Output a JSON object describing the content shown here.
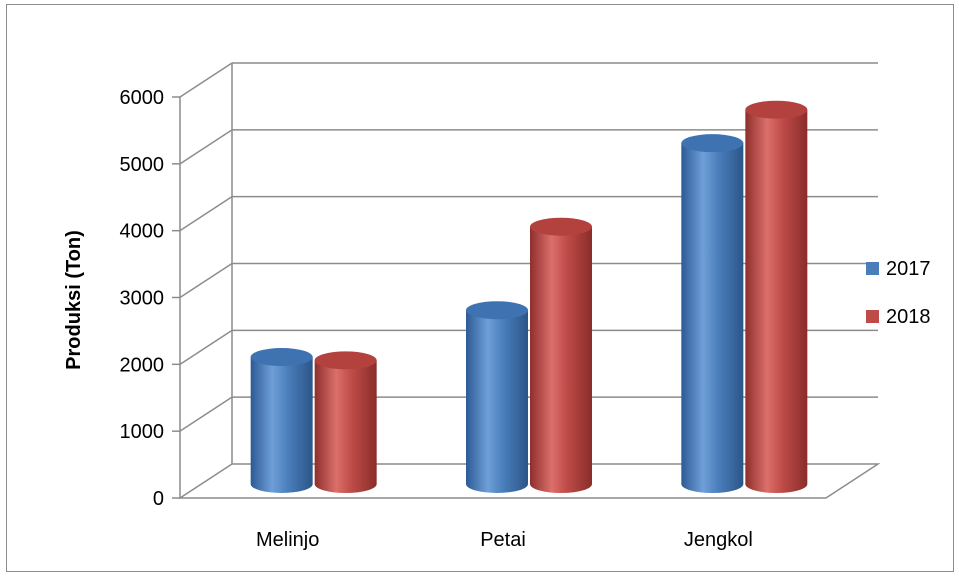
{
  "chart_data": {
    "type": "bar",
    "title": "",
    "xlabel": "",
    "ylabel": "Produksi (Ton)",
    "categories": [
      "Melinjo",
      "Petai",
      "Jengkol"
    ],
    "series": [
      {
        "name": "2017",
        "values": [
          1900,
          2600,
          5100
        ],
        "color": "#4a7ebb"
      },
      {
        "name": "2018",
        "values": [
          1850,
          3850,
          5600
        ],
        "color": "#be4b48"
      }
    ],
    "ylim": [
      0,
      6000
    ],
    "yticks": [
      "0",
      "1000",
      "2000",
      "3000",
      "4000",
      "5000",
      "6000"
    ],
    "grid": true,
    "legend_position": "right",
    "style": "3d-cylinder"
  }
}
